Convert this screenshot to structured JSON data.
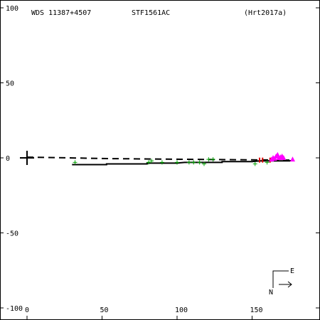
{
  "header": {
    "wds": "WDS 11387+4507",
    "discoverer": "STF1561AC",
    "reference": "(Hrt2017a)"
  },
  "compass": {
    "east": "E",
    "north": "N"
  },
  "colors": {
    "frame": "#000000",
    "obs_plus": "#00a000",
    "obs_red": "#e00000",
    "obs_magenta": "#ff00ff"
  },
  "chart_data": {
    "type": "scatter",
    "title": "",
    "xlabel": "",
    "ylabel": "",
    "xlim": [
      0,
      190
    ],
    "ylim": [
      -100,
      100
    ],
    "x_ticks": [
      {
        "value": 0,
        "label": "0"
      },
      {
        "value": 50,
        "label": "50"
      },
      {
        "value": 100,
        "label": "100"
      },
      {
        "value": 150,
        "label": "150"
      }
    ],
    "y_ticks": [
      {
        "value": 100,
        "label": "100"
      },
      {
        "value": 50,
        "label": "50"
      },
      {
        "value": 0,
        "label": "0"
      },
      {
        "value": -50,
        "label": "-50"
      },
      {
        "value": -100,
        "label": "-100"
      }
    ],
    "primary": {
      "x": 0,
      "y": 0
    },
    "orbit_dashed": [
      [
        0,
        0.5
      ],
      [
        55,
        -0.5
      ],
      [
        110,
        -1.0
      ],
      [
        175,
        -1.5
      ]
    ],
    "orbit_solid": [
      [
        30,
        -4.5
      ],
      [
        53,
        -4.5
      ],
      [
        53,
        -4.0
      ],
      [
        80,
        -4.0
      ],
      [
        80,
        -3.5
      ],
      [
        100,
        -3.5
      ],
      [
        105,
        -3.0
      ],
      [
        130,
        -3.0
      ],
      [
        130,
        -2.5
      ],
      [
        150,
        -2.5
      ],
      [
        155,
        -2.0
      ],
      [
        175,
        -2.0
      ],
      [
        178,
        -1.5
      ]
    ],
    "series": [
      {
        "marker": "plus",
        "points": [
          [
            32,
            -3
          ],
          [
            81,
            -3
          ],
          [
            83,
            -2
          ],
          [
            90,
            -3
          ],
          [
            100,
            -3
          ],
          [
            108,
            -3
          ],
          [
            111,
            -3
          ],
          [
            115,
            -3
          ],
          [
            118,
            -4
          ],
          [
            121,
            -1
          ],
          [
            124,
            -1
          ],
          [
            152,
            -4
          ],
          [
            160,
            -3
          ],
          [
            163,
            -1
          ]
        ]
      },
      {
        "marker": "vbar",
        "points": [
          [
            155,
            -1.5
          ],
          [
            157,
            -1.5
          ],
          [
            162,
            -1.5
          ]
        ]
      },
      {
        "marker": "triangle",
        "points": [
          [
            163,
            -1
          ],
          [
            164,
            0
          ],
          [
            165,
            -0.5
          ],
          [
            166,
            1
          ],
          [
            167,
            2
          ],
          [
            168,
            0
          ],
          [
            169,
            0.5
          ],
          [
            170,
            1
          ],
          [
            171,
            0
          ],
          [
            177,
            -1
          ]
        ]
      }
    ]
  }
}
